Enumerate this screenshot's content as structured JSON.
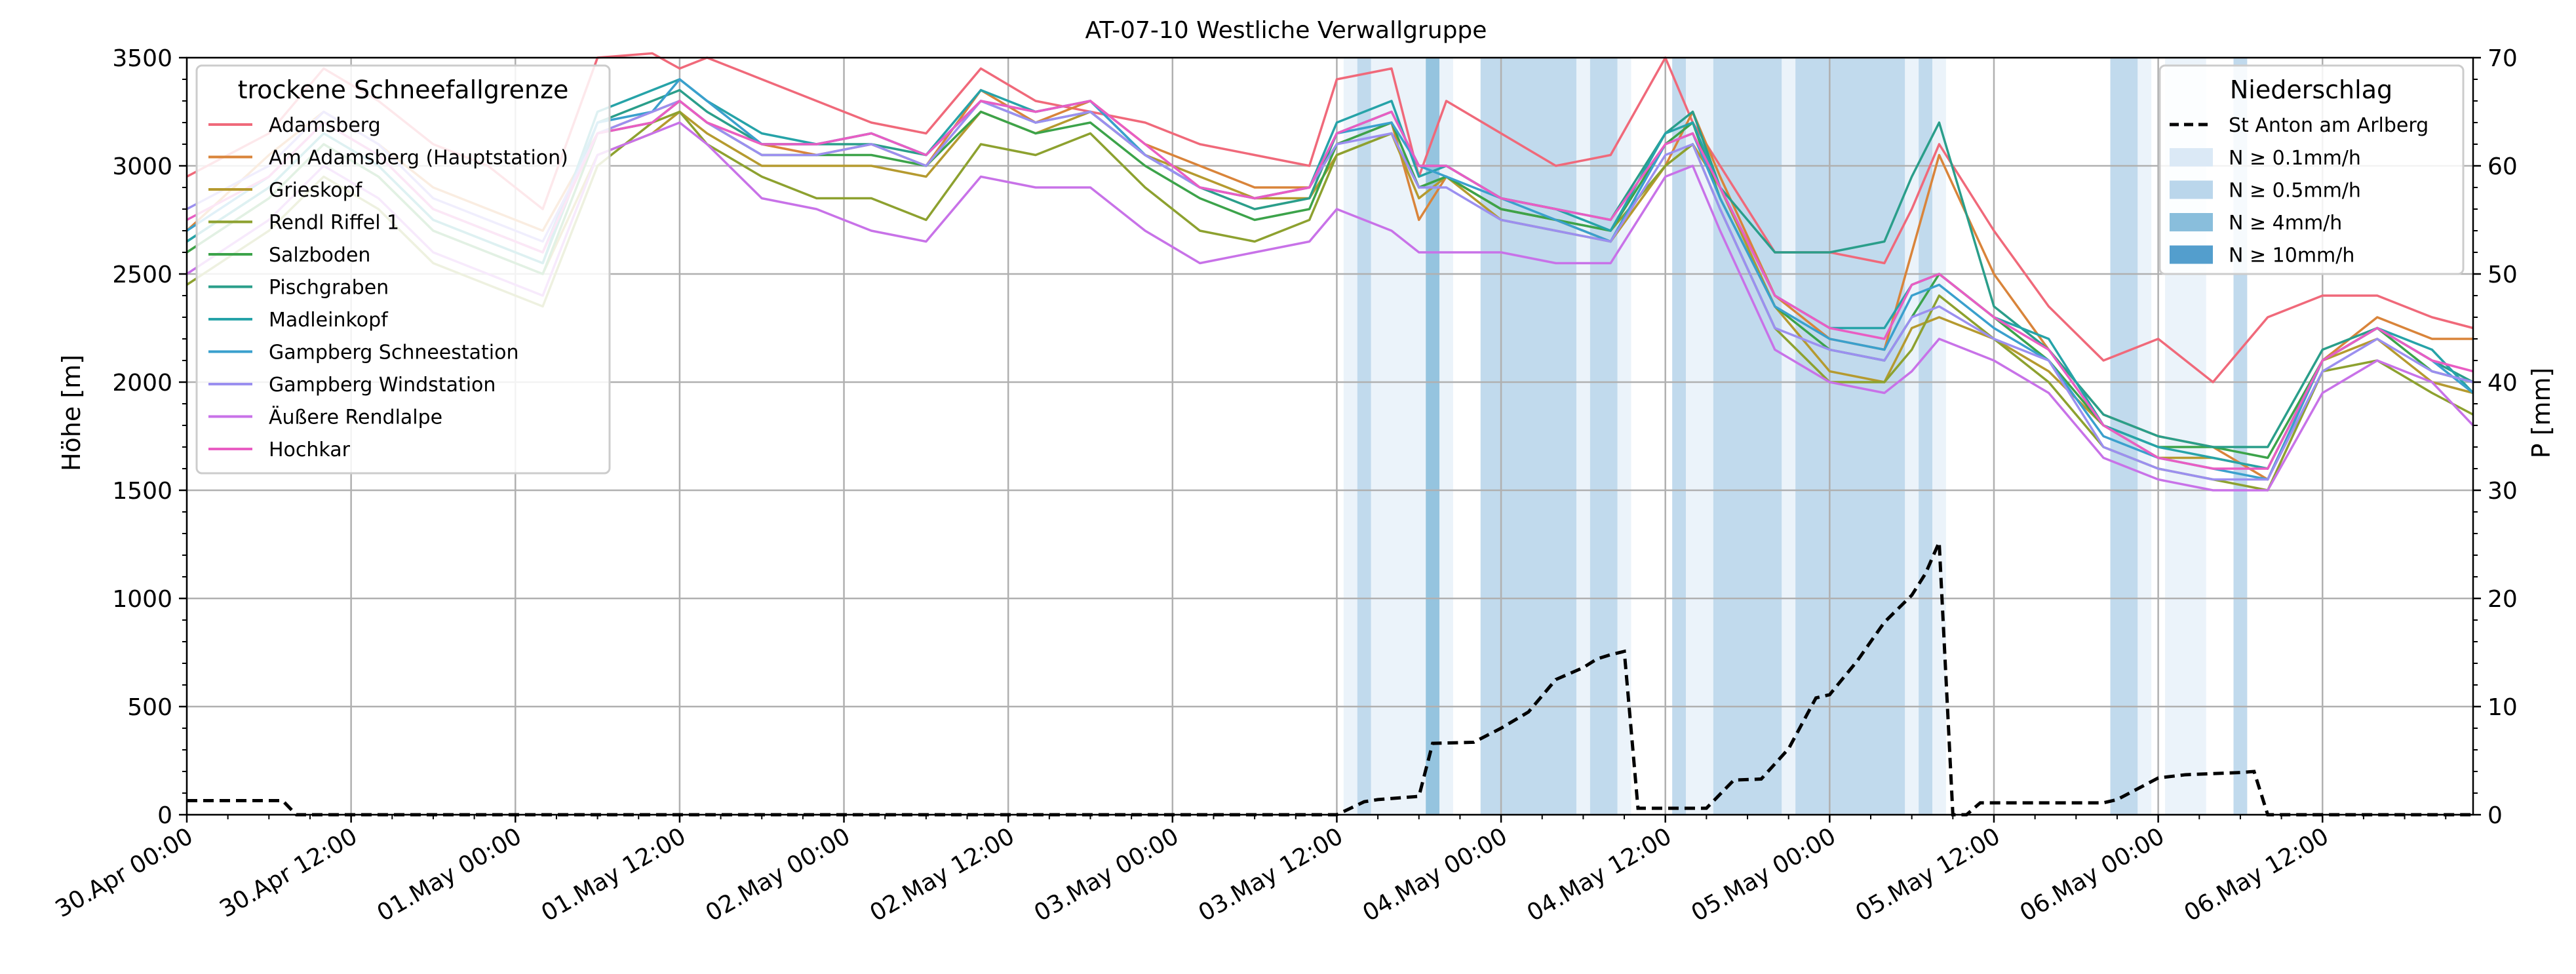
{
  "chart_data": {
    "type": "line",
    "title": "AT-07-10 Westliche Verwallgruppe",
    "ylabel": "Höhe [m]",
    "y2label": "P [mm]",
    "ylim": [
      0,
      3500
    ],
    "y2lim": [
      0,
      70
    ],
    "yticks": [
      0,
      500,
      1000,
      1500,
      2000,
      2500,
      3000,
      3500
    ],
    "y2ticks": [
      0,
      10,
      20,
      30,
      40,
      50,
      60,
      70
    ],
    "xlim_hours": [
      0,
      167
    ],
    "x_start": "2024-04-30T00:00",
    "x_end": "2024-05-06T23:00",
    "xtick_labels": [
      "30.Apr 00:00",
      "30.Apr 12:00",
      "01.May 00:00",
      "01.May 12:00",
      "02.May 00:00",
      "02.May 12:00",
      "03.May 00:00",
      "03.May 12:00",
      "04.May 00:00",
      "04.May 12:00",
      "05.May 00:00",
      "05.May 12:00",
      "06.May 00:00",
      "06.May 12:00"
    ],
    "xtick_hours": [
      0,
      12,
      24,
      36,
      48,
      60,
      72,
      84,
      96,
      108,
      120,
      132,
      144,
      156
    ],
    "grid": true,
    "legend_left": {
      "title": "trockene Schneefallgrenze",
      "placement": "upper-left"
    },
    "legend_right": {
      "title": "Niederschlag",
      "placement": "upper-right",
      "precip_line_label": "St Anton am Arlberg",
      "band_labels": [
        "N ≥ 0.1mm/h",
        "N ≥ 0.5mm/h",
        "N ≥ 4mm/h",
        "N ≥ 10mm/h"
      ],
      "band_colors": [
        "#dbe9f6",
        "#bad6eb",
        "#89bedc",
        "#539ecd"
      ]
    },
    "precip_bands": [
      {
        "start": 84.5,
        "end": 85.5,
        "level": 0
      },
      {
        "start": 85.5,
        "end": 86.5,
        "level": 1
      },
      {
        "start": 86.5,
        "end": 90.5,
        "level": 0
      },
      {
        "start": 90.5,
        "end": 91.5,
        "level": 2
      },
      {
        "start": 91.5,
        "end": 92.5,
        "level": 0
      },
      {
        "start": 94.5,
        "end": 101.5,
        "level": 1
      },
      {
        "start": 101.5,
        "end": 102.5,
        "level": 0
      },
      {
        "start": 102.5,
        "end": 104.5,
        "level": 1
      },
      {
        "start": 104.5,
        "end": 105.5,
        "level": 0
      },
      {
        "start": 108.5,
        "end": 109.5,
        "level": 1
      },
      {
        "start": 109.5,
        "end": 111.5,
        "level": 0
      },
      {
        "start": 111.5,
        "end": 116.5,
        "level": 1
      },
      {
        "start": 116.5,
        "end": 117.5,
        "level": 0
      },
      {
        "start": 117.5,
        "end": 125.5,
        "level": 1
      },
      {
        "start": 125.5,
        "end": 126.5,
        "level": 0
      },
      {
        "start": 126.5,
        "end": 127.5,
        "level": 1
      },
      {
        "start": 127.5,
        "end": 128.5,
        "level": 0
      },
      {
        "start": 140.5,
        "end": 142.5,
        "level": 1
      },
      {
        "start": 142.5,
        "end": 143.5,
        "level": 0
      },
      {
        "start": 144.5,
        "end": 147.5,
        "level": 0
      },
      {
        "start": 149.5,
        "end": 150.5,
        "level": 1
      }
    ],
    "precip_series": {
      "name": "St Anton am Arlberg",
      "color": "#000000",
      "x": [
        0,
        7,
        8,
        9,
        10,
        84,
        86,
        87,
        90,
        91,
        94,
        96,
        98,
        100,
        102,
        103,
        104,
        105,
        106,
        110,
        111,
        113,
        115,
        117,
        119,
        120,
        122,
        124,
        126,
        127,
        128,
        129,
        130,
        131,
        140,
        141,
        144,
        146,
        148,
        150,
        151,
        152,
        167
      ],
      "values": [
        1.3,
        1.3,
        0,
        0,
        0,
        0,
        1.2,
        1.4,
        1.7,
        6.6,
        6.7,
        8.0,
        9.5,
        12.5,
        13.6,
        14.4,
        14.8,
        15.1,
        0.6,
        0.6,
        0.6,
        3.2,
        3.3,
        6.1,
        10.8,
        11.1,
        14.2,
        17.8,
        20.3,
        22.3,
        25.2,
        0,
        0,
        1.1,
        1.1,
        1.4,
        3.4,
        3.7,
        3.8,
        3.9,
        4.0,
        0,
        0
      ]
    },
    "x_hours": [
      0,
      6,
      10,
      14,
      18,
      22,
      26,
      30,
      34,
      36,
      38,
      42,
      46,
      50,
      54,
      58,
      62,
      66,
      70,
      74,
      78,
      82,
      84,
      88,
      90,
      92,
      96,
      100,
      104,
      108,
      110,
      112,
      116,
      120,
      124,
      126,
      128,
      132,
      136,
      140,
      144,
      148,
      152,
      156,
      160,
      164,
      167
    ],
    "series": [
      {
        "name": "Adamsberg",
        "color": "#f0697a",
        "values": [
          2950,
          3150,
          3450,
          3300,
          3100,
          3000,
          2800,
          3500,
          3520,
          3450,
          3500,
          3400,
          3300,
          3200,
          3150,
          3450,
          3300,
          3250,
          3200,
          3100,
          3050,
          3000,
          3400,
          3450,
          2950,
          3300,
          3150,
          3000,
          3050,
          3500,
          3200,
          3000,
          2600,
          2600,
          2550,
          2800,
          3100,
          2700,
          2350,
          2100,
          2200,
          2000,
          2300,
          2400,
          2400,
          2300,
          2250
        ]
      },
      {
        "name": "Am Adamsberg (Hauptstation)",
        "color": "#d9843a",
        "values": [
          2700,
          3050,
          3250,
          3100,
          2900,
          2800,
          2700,
          3150,
          3250,
          3300,
          3200,
          3100,
          3050,
          3100,
          3000,
          3350,
          3200,
          3300,
          3100,
          3000,
          2900,
          2900,
          3100,
          3200,
          2750,
          2950,
          2800,
          2750,
          2650,
          3000,
          3250,
          2950,
          2400,
          2200,
          2150,
          2600,
          3050,
          2500,
          2150,
          1850,
          1750,
          1700,
          1550,
          2100,
          2300,
          2200,
          2200
        ]
      },
      {
        "name": "Grieskopf",
        "color": "#b59a2f",
        "values": [
          2600,
          2850,
          3100,
          2950,
          2700,
          2600,
          2500,
          3050,
          3150,
          3250,
          3150,
          3000,
          3000,
          3000,
          2950,
          3250,
          3150,
          3250,
          3050,
          2950,
          2850,
          2850,
          3050,
          3150,
          2850,
          2950,
          2750,
          2700,
          2650,
          3000,
          3100,
          2900,
          2350,
          2050,
          2000,
          2250,
          2300,
          2200,
          2050,
          1800,
          1650,
          1650,
          1600,
          2100,
          2200,
          2000,
          1950
        ]
      },
      {
        "name": "Rendl Riffel 1",
        "color": "#8da12f",
        "values": [
          2450,
          2700,
          2950,
          2800,
          2550,
          2450,
          2350,
          3000,
          3200,
          3250,
          3100,
          2950,
          2850,
          2850,
          2750,
          3100,
          3050,
          3150,
          2900,
          2700,
          2650,
          2750,
          3050,
          3150,
          2900,
          2950,
          2800,
          2750,
          2700,
          3000,
          3100,
          2800,
          2250,
          2000,
          2000,
          2150,
          2400,
          2200,
          2000,
          1700,
          1600,
          1550,
          1500,
          2050,
          2100,
          1950,
          1850
        ]
      },
      {
        "name": "Salzboden",
        "color": "#3ca34a",
        "values": [
          2600,
          2850,
          3100,
          2950,
          2700,
          2600,
          2500,
          3150,
          3200,
          3300,
          3200,
          3050,
          3050,
          3050,
          3000,
          3250,
          3150,
          3200,
          3000,
          2850,
          2750,
          2800,
          3100,
          3200,
          2900,
          2950,
          2800,
          2750,
          2700,
          3100,
          3200,
          2850,
          2350,
          2150,
          2100,
          2300,
          2500,
          2300,
          2100,
          1800,
          1700,
          1700,
          1650,
          2100,
          2250,
          2050,
          2000
        ]
      },
      {
        "name": "Pischgraben",
        "color": "#2a9e8a",
        "values": [
          2650,
          2900,
          3150,
          3000,
          2750,
          2650,
          2550,
          3200,
          3300,
          3350,
          3250,
          3100,
          3100,
          3100,
          3050,
          3300,
          3200,
          3250,
          3050,
          2900,
          2800,
          2850,
          3150,
          3250,
          3000,
          3000,
          2850,
          2800,
          2750,
          3150,
          3250,
          2900,
          2600,
          2600,
          2650,
          2950,
          3200,
          2350,
          2150,
          1850,
          1750,
          1700,
          1700,
          2150,
          2250,
          2100,
          2000
        ]
      },
      {
        "name": "Madleinkopf",
        "color": "#26a3a8",
        "values": [
          2650,
          2900,
          3150,
          3000,
          2750,
          2650,
          2550,
          3250,
          3350,
          3400,
          3300,
          3150,
          3100,
          3150,
          3050,
          3350,
          3250,
          3300,
          3050,
          2900,
          2850,
          2900,
          3200,
          3300,
          2950,
          3000,
          2850,
          2800,
          2700,
          3150,
          3200,
          2900,
          2400,
          2250,
          2250,
          2450,
          2500,
          2300,
          2200,
          1800,
          1700,
          1650,
          1600,
          2100,
          2250,
          2150,
          1950
        ]
      },
      {
        "name": "Gampberg Schneestation",
        "color": "#3aa0cd",
        "values": [
          2700,
          2950,
          3200,
          3050,
          2800,
          2700,
          2600,
          3200,
          3250,
          3400,
          3300,
          3100,
          3100,
          3150,
          3050,
          3300,
          3250,
          3300,
          3050,
          2900,
          2850,
          2900,
          3150,
          3200,
          3000,
          2950,
          2850,
          2750,
          2650,
          3100,
          3150,
          2850,
          2350,
          2200,
          2150,
          2400,
          2450,
          2250,
          2100,
          1750,
          1650,
          1600,
          1550,
          2100,
          2250,
          2100,
          1950
        ]
      },
      {
        "name": "Gampberg Windstation",
        "color": "#9b8ff0",
        "values": [
          2800,
          3000,
          3250,
          3100,
          2850,
          2750,
          2650,
          3150,
          3250,
          3300,
          3200,
          3050,
          3050,
          3100,
          3000,
          3300,
          3200,
          3250,
          3050,
          2900,
          2850,
          2900,
          3100,
          3150,
          2900,
          2900,
          2750,
          2700,
          2650,
          3050,
          3100,
          2800,
          2250,
          2150,
          2100,
          2300,
          2350,
          2200,
          2100,
          1700,
          1600,
          1550,
          1550,
          2050,
          2200,
          2050,
          2000
        ]
      },
      {
        "name": "Äußere Rendlalpe",
        "color": "#c872e8",
        "values": [
          2500,
          2750,
          3000,
          2850,
          2600,
          2500,
          2400,
          3050,
          3150,
          3200,
          3100,
          2850,
          2800,
          2700,
          2650,
          2950,
          2900,
          2900,
          2700,
          2550,
          2600,
          2650,
          2800,
          2700,
          2600,
          2600,
          2600,
          2550,
          2550,
          2950,
          3000,
          2700,
          2150,
          2000,
          1950,
          2050,
          2200,
          2100,
          1950,
          1650,
          1550,
          1500,
          1500,
          1950,
          2100,
          2000,
          1800
        ]
      },
      {
        "name": "Hochkar",
        "color": "#e95dc3",
        "values": [
          2750,
          2950,
          3200,
          3050,
          2800,
          2700,
          2600,
          3150,
          3200,
          3300,
          3200,
          3100,
          3100,
          3150,
          3050,
          3300,
          3250,
          3300,
          3100,
          2900,
          2850,
          2900,
          3150,
          3250,
          3000,
          3000,
          2850,
          2800,
          2750,
          3100,
          3150,
          2900,
          2400,
          2250,
          2200,
          2450,
          2500,
          2300,
          2150,
          1800,
          1650,
          1600,
          1600,
          2100,
          2250,
          2100,
          2050
        ]
      }
    ]
  }
}
